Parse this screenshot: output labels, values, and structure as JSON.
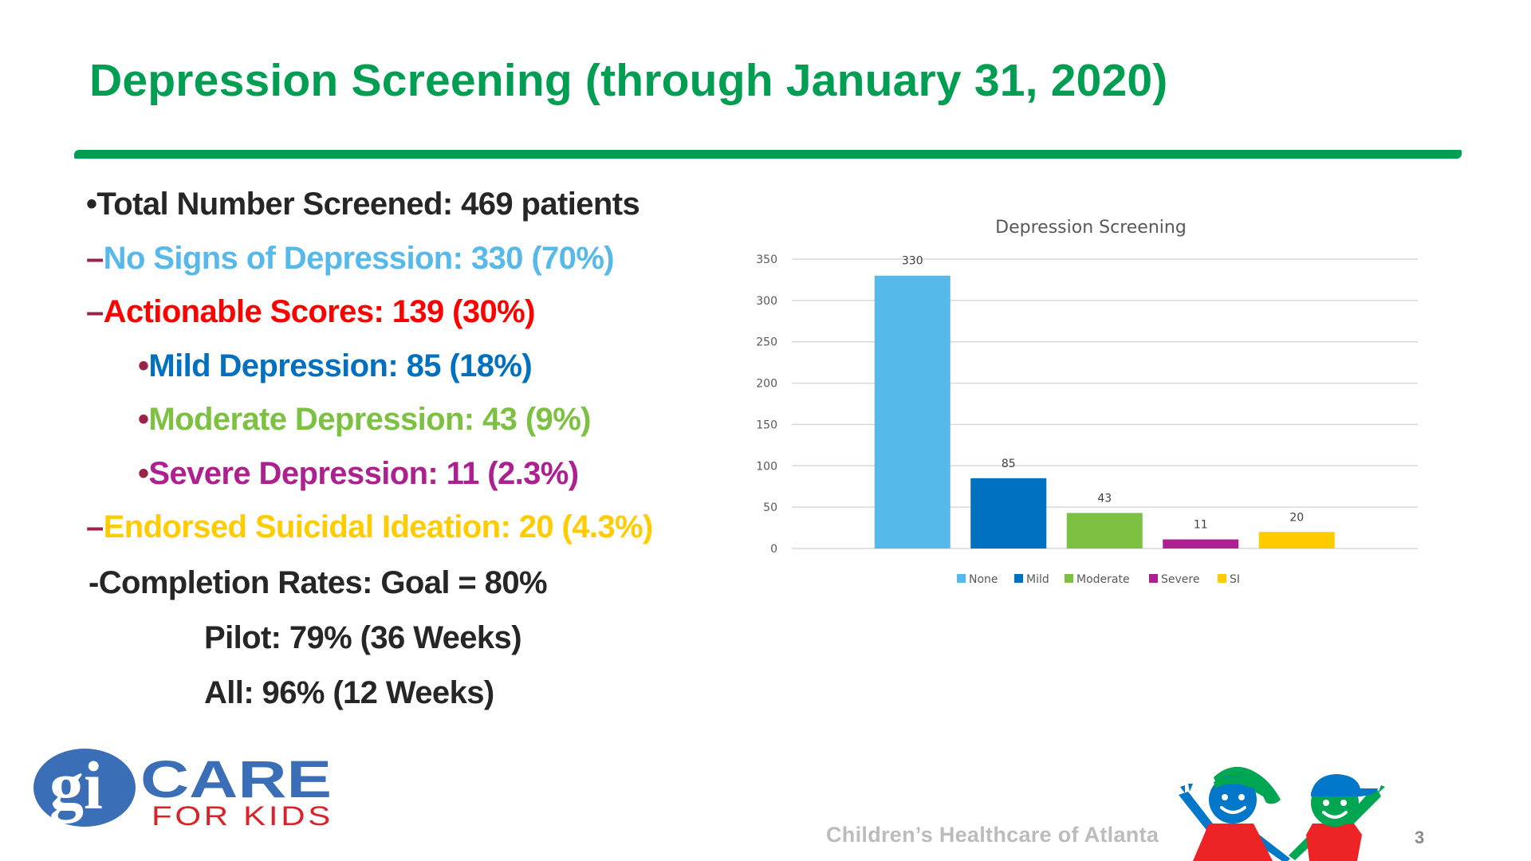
{
  "slide": {
    "title": "Depression Screening (through January 31, 2020)",
    "page_number": "3",
    "footer_text": "Children’s Healthcare of Atlanta"
  },
  "bullets": [
    {
      "marker": "•",
      "text": "Total Number Screened: 469 patients",
      "color": "#262626",
      "level": 0
    },
    {
      "marker": "–",
      "text": "No Signs of Depression: 330 (70%)",
      "color": "#56b9ea",
      "level": 1
    },
    {
      "marker": "–",
      "text": "Actionable Scores: 139 (30%)",
      "color": "#ff0000",
      "level": 1
    },
    {
      "marker": "•",
      "text": "Mild Depression: 85 (18%)",
      "color": "#0070c0",
      "level": 2
    },
    {
      "marker": "•",
      "text": "Moderate Depression: 43 (9%)",
      "color": "#7cc142",
      "level": 2
    },
    {
      "marker": "•",
      "text": "Severe Depression: 11 (2.3%)",
      "color": "#ae2090",
      "level": 2
    },
    {
      "marker": "–",
      "text": "Endorsed Suicidal Ideation: 20 (4.3%)",
      "color": "#ffcc00",
      "level": 1
    },
    {
      "marker": "",
      "text": "-Completion Rates: Goal = 80%",
      "color": "#262626",
      "level": 1
    },
    {
      "marker": "",
      "text": "Pilot: 79% (36 Weeks)",
      "color": "#262626",
      "level": 3
    },
    {
      "marker": "",
      "text": "All: 96% (12 Weeks)",
      "color": "#262626",
      "level": 3
    }
  ],
  "logos": {
    "gi_care": {
      "mark": "gi",
      "word": "CARE",
      "tagline": "FOR KIDS",
      "blue": "#3a6fb7",
      "red": "#d8232a"
    }
  },
  "colors": {
    "title_green": "#009e52",
    "marker_maroon": "#9b2348"
  },
  "chart_data": {
    "type": "bar",
    "title": "Depression Screening",
    "categories": [
      "None",
      "Mild",
      "Moderate",
      "Severe",
      "SI"
    ],
    "values": [
      330,
      85,
      43,
      11,
      20
    ],
    "colors": [
      "#56b9ea",
      "#0070c0",
      "#7cc142",
      "#ae2090",
      "#ffcc00"
    ],
    "xlabel": "",
    "ylabel": "",
    "ylim": [
      0,
      350
    ],
    "yticks": [
      0,
      50,
      100,
      150,
      200,
      250,
      300,
      350
    ],
    "grid": true,
    "data_labels": true,
    "legend": {
      "position": "bottom",
      "entries": [
        "None",
        "Mild",
        "Moderate",
        "Severe",
        "SI"
      ]
    }
  }
}
